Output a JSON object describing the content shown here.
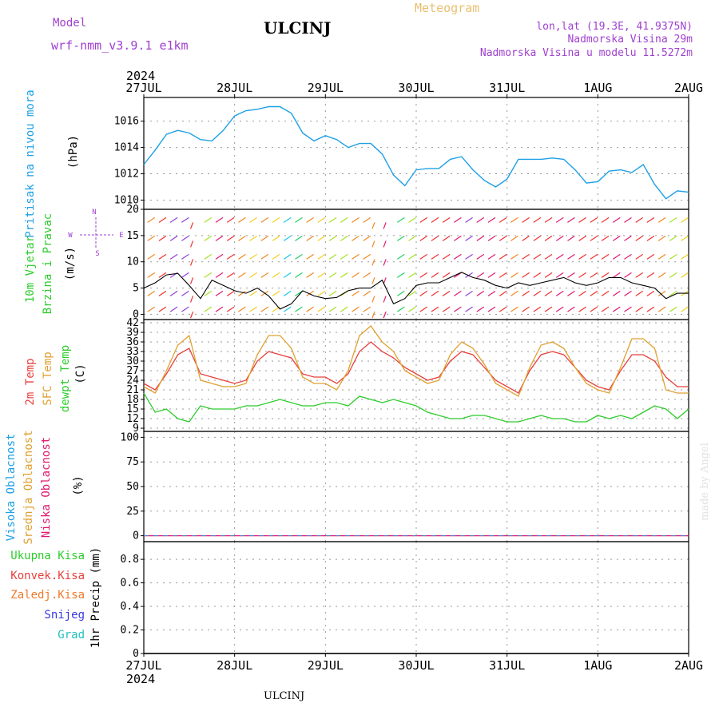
{
  "header": {
    "model_label": "Model",
    "model_name": "wrf-nmm_v3.9.1 e1km",
    "station_title": "ULCINJ",
    "product_title": "Meteogram",
    "coords": "lon,lat (19.3E, 41.9375N)",
    "elevation": "Nadmorska Visina 29m",
    "model_elevation": "Nadmorska Visina u modelu 11.5272m",
    "year_top": "2024",
    "year_bottom": "2024",
    "footer_station": "ULCINJ",
    "credit": "made by Angel"
  },
  "colors": {
    "pressure": "#1ea0e6",
    "temp2m": "#e8403c",
    "sfc": "#e0a030",
    "dewpt": "#2ccc2c",
    "high_cloud": "#1ea0e6",
    "mid_cloud": "#e0a030",
    "low_cloud": "#e01870",
    "rain_total": "#2ccc2c",
    "rain_conv": "#e8403c",
    "rain_frozen": "#f07828",
    "snow": "#3838e0",
    "grad": "#20c0c0",
    "model_header": "#a040d0",
    "meteogram": "#e8c070"
  },
  "x_axis": {
    "dates": [
      "27JUL",
      "28JUL",
      "29JUL",
      "30JUL",
      "31JUL",
      "1AUG",
      "2AUG"
    ]
  },
  "panels": {
    "pressure": {
      "label": "Pritisak na nivou mora",
      "unit": "(hPa)",
      "ticks": [
        "1010",
        "1012",
        "1014",
        "1016"
      ]
    },
    "wind": {
      "label1": "10m Vjetar",
      "label2": "Brzina i Pravac",
      "unit": "(m/s)",
      "ticks": [
        "0",
        "5",
        "10",
        "15",
        "20"
      ],
      "compass_n": "N",
      "compass_s": "S",
      "compass_w": "W",
      "compass_e": "E"
    },
    "temp": {
      "label1": "2m Temp",
      "label2": "SFC Temp",
      "label3": "dewpt Temp",
      "unit": "(C)",
      "ticks": [
        "9",
        "12",
        "15",
        "18",
        "21",
        "24",
        "27",
        "30",
        "33",
        "36",
        "39",
        "42"
      ]
    },
    "cloud": {
      "label1": "Visoka Oblacnost",
      "label2": "Srednja Oblacnost",
      "label3": "Niska Oblacnost",
      "unit": "(%)",
      "ticks": [
        "0",
        "25",
        "50",
        "75",
        "100"
      ]
    },
    "precip": {
      "legend": [
        "Ukupna Kisa",
        "Konvek.Kisa",
        "Zaledj.Kisa",
        "Snijeg",
        "Grad"
      ],
      "unit": "1hr Precip (mm)",
      "ticks": [
        "0",
        "0.2",
        "0.4",
        "0.6",
        "0.8"
      ]
    }
  },
  "chart_data": [
    {
      "type": "line",
      "title": "Pritisak na nivou mora",
      "ylabel": "(hPa)",
      "ylim": [
        1009.3,
        1017.8
      ],
      "x_unit": "hours from 27JUL 00",
      "series": [
        {
          "x": [
            0,
            3,
            6,
            9,
            12,
            15,
            18,
            21,
            24,
            27,
            30,
            33,
            36,
            39,
            42,
            45,
            48,
            51,
            54,
            57,
            60,
            63,
            66,
            69,
            72,
            75,
            78,
            81,
            84,
            87,
            90,
            93,
            96,
            99,
            102,
            105,
            108,
            111,
            114,
            117,
            120,
            123,
            126,
            129,
            132,
            135,
            138,
            141,
            144
          ],
          "values": [
            1012.7,
            1013.8,
            1015.0,
            1015.3,
            1015.1,
            1014.6,
            1014.5,
            1015.3,
            1016.4,
            1016.8,
            1016.9,
            1017.1,
            1017.1,
            1016.6,
            1015.1,
            1014.5,
            1014.9,
            1014.6,
            1014.0,
            1014.3,
            1014.3,
            1013.5,
            1011.9,
            1011.1,
            1012.3,
            1012.4,
            1012.4,
            1013.1,
            1013.3,
            1012.3,
            1011.5,
            1011.0,
            1011.6,
            1013.1,
            1013.1,
            1013.1,
            1013.2,
            1013.1,
            1012.3,
            1011.3,
            1011.4,
            1012.2,
            1012.3,
            1012.1,
            1012.7,
            1011.2,
            1010.1,
            1010.7,
            1010.6
          ]
        }
      ]
    },
    {
      "type": "line",
      "title": "10m Vjetar",
      "ylabel": "(m/s)",
      "ylim": [
        -1,
        20
      ],
      "x_unit": "hours from 27JUL 00",
      "series": [
        {
          "x": [
            0,
            3,
            6,
            9,
            12,
            15,
            18,
            21,
            24,
            27,
            30,
            33,
            36,
            39,
            42,
            45,
            48,
            51,
            54,
            57,
            60,
            63,
            66,
            69,
            72,
            75,
            78,
            81,
            84,
            87,
            90,
            93,
            96,
            99,
            102,
            105,
            108,
            111,
            114,
            117,
            120,
            123,
            126,
            129,
            132,
            135,
            138,
            141,
            144
          ],
          "values": [
            5,
            6,
            7.5,
            7.8,
            5.5,
            3,
            6.5,
            5.5,
            4.5,
            4,
            5,
            3.5,
            1,
            2,
            4.5,
            3.5,
            3,
            3.2,
            4.5,
            5,
            5,
            6.5,
            2,
            3,
            5.5,
            6,
            6,
            7,
            8,
            7,
            6.5,
            5.5,
            5,
            6,
            5.5,
            6,
            6.5,
            7,
            6,
            5.5,
            6,
            7,
            7,
            6,
            5.5,
            5,
            3,
            4,
            4
          ]
        }
      ]
    },
    {
      "type": "line",
      "title": "2m Temp / SFC Temp / dewpt Temp",
      "ylabel": "(C)",
      "ylim": [
        8,
        43
      ],
      "x_unit": "hours from 27JUL 00",
      "series": [
        {
          "name": "2m Temp",
          "x": [
            0,
            3,
            6,
            9,
            12,
            15,
            18,
            21,
            24,
            27,
            30,
            33,
            36,
            39,
            42,
            45,
            48,
            51,
            54,
            57,
            60,
            63,
            66,
            69,
            72,
            75,
            78,
            81,
            84,
            87,
            90,
            93,
            96,
            99,
            102,
            105,
            108,
            111,
            114,
            117,
            120,
            123,
            126,
            129,
            132,
            135,
            138,
            141,
            144
          ],
          "values": [
            23,
            21,
            26,
            32,
            34,
            26,
            25,
            24,
            23,
            24,
            30,
            33,
            32,
            31,
            26,
            25,
            25,
            23,
            26,
            33,
            36,
            33,
            31,
            28,
            26,
            24,
            25,
            30,
            33,
            32,
            28,
            24,
            22,
            20,
            27,
            32,
            33,
            32,
            28,
            24,
            22,
            21,
            27,
            32,
            32,
            30,
            25,
            22,
            22
          ]
        },
        {
          "name": "SFC Temp",
          "x": [
            0,
            3,
            6,
            9,
            12,
            15,
            18,
            21,
            24,
            27,
            30,
            33,
            36,
            39,
            42,
            45,
            48,
            51,
            54,
            57,
            60,
            63,
            66,
            69,
            72,
            75,
            78,
            81,
            84,
            87,
            90,
            93,
            96,
            99,
            102,
            105,
            108,
            111,
            114,
            117,
            120,
            123,
            126,
            129,
            132,
            135,
            138,
            141,
            144
          ],
          "values": [
            22,
            20,
            27,
            35,
            38,
            24,
            23,
            22,
            22,
            23,
            32,
            38,
            38,
            34,
            25,
            23,
            23,
            21,
            27,
            38,
            41,
            36,
            33,
            27,
            25,
            23,
            24,
            32,
            36,
            34,
            29,
            23,
            21,
            19,
            28,
            35,
            36,
            34,
            28,
            23,
            21,
            20,
            28,
            37,
            37,
            34,
            21,
            20,
            20
          ]
        },
        {
          "name": "dewpt Temp",
          "x": [
            0,
            3,
            6,
            9,
            12,
            15,
            18,
            21,
            24,
            27,
            30,
            33,
            36,
            39,
            42,
            45,
            48,
            51,
            54,
            57,
            60,
            63,
            66,
            69,
            72,
            75,
            78,
            81,
            84,
            87,
            90,
            93,
            96,
            99,
            102,
            105,
            108,
            111,
            114,
            117,
            120,
            123,
            126,
            129,
            132,
            135,
            138,
            141,
            144
          ],
          "values": [
            20,
            14,
            15,
            12,
            11,
            16,
            15,
            15,
            15,
            16,
            16,
            17,
            18,
            17,
            16,
            16,
            17,
            17,
            16,
            19,
            18,
            17,
            18,
            17,
            16,
            14,
            13,
            12,
            12,
            13,
            13,
            12,
            11,
            11,
            12,
            13,
            12,
            12,
            11,
            11,
            13,
            12,
            13,
            12,
            14,
            16,
            15,
            12,
            15
          ]
        }
      ]
    },
    {
      "type": "line",
      "title": "Oblacnost",
      "ylabel": "(%)",
      "ylim": [
        -6,
        106
      ],
      "series": [
        {
          "name": "Visoka Oblacnost",
          "values": [
            0,
            0
          ]
        },
        {
          "name": "Srednja Oblacnost",
          "values": [
            0,
            0
          ]
        },
        {
          "name": "Niska Oblacnost",
          "values": [
            0,
            0
          ]
        }
      ]
    },
    {
      "type": "line",
      "title": "1hr Precip",
      "ylabel": "(mm)",
      "ylim": [
        0,
        0.95
      ],
      "series": [
        {
          "name": "Ukupna Kisa",
          "values": [
            0,
            0
          ]
        }
      ]
    }
  ]
}
